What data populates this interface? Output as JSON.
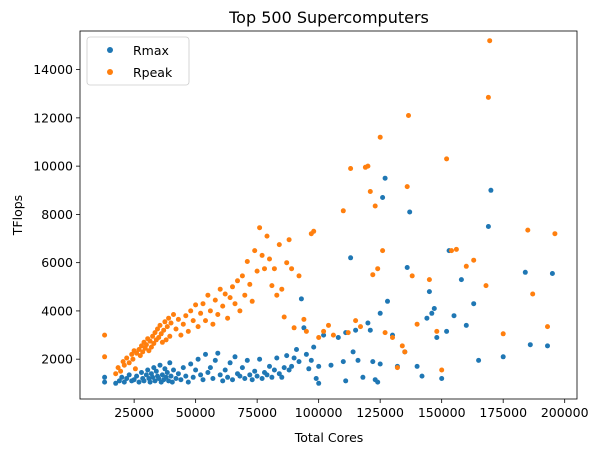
{
  "chart_data": {
    "type": "scatter",
    "title": "Top 500 Supercomputers",
    "xlabel": "Total Cores",
    "ylabel": "TFlops",
    "xlim": [
      3000,
      205000
    ],
    "ylim": [
      350,
      15600
    ],
    "xticks": [
      25000,
      50000,
      75000,
      100000,
      125000,
      150000,
      175000,
      200000
    ],
    "yticks": [
      2000,
      4000,
      6000,
      8000,
      10000,
      12000,
      14000
    ],
    "grid": false,
    "legend_position": "top-left",
    "series": [
      {
        "name": "Rmax",
        "color": "#1f77b4",
        "points": [
          [
            13000,
            1050
          ],
          [
            13000,
            1250
          ],
          [
            17500,
            1000
          ],
          [
            19000,
            1100
          ],
          [
            20000,
            1250
          ],
          [
            21000,
            1050
          ],
          [
            22000,
            1200
          ],
          [
            23000,
            1350
          ],
          [
            24000,
            1100
          ],
          [
            25000,
            1150
          ],
          [
            26000,
            1300
          ],
          [
            27000,
            1050
          ],
          [
            28000,
            1450
          ],
          [
            28500,
            1200
          ],
          [
            29000,
            1100
          ],
          [
            30000,
            1350
          ],
          [
            30500,
            1550
          ],
          [
            31000,
            1200
          ],
          [
            31500,
            1050
          ],
          [
            32000,
            1400
          ],
          [
            32500,
            1250
          ],
          [
            33000,
            1650
          ],
          [
            33500,
            1100
          ],
          [
            34000,
            1500
          ],
          [
            34500,
            1300
          ],
          [
            35000,
            1200
          ],
          [
            35500,
            1750
          ],
          [
            36000,
            1050
          ],
          [
            36500,
            1350
          ],
          [
            37000,
            1150
          ],
          [
            37500,
            1600
          ],
          [
            38000,
            1250
          ],
          [
            38500,
            1450
          ],
          [
            39000,
            1100
          ],
          [
            39500,
            1850
          ],
          [
            40000,
            1300
          ],
          [
            40500,
            1050
          ],
          [
            41000,
            1550
          ],
          [
            42000,
            1200
          ],
          [
            43000,
            1400
          ],
          [
            44000,
            1150
          ],
          [
            45000,
            1650
          ],
          [
            46000,
            1300
          ],
          [
            47000,
            1050
          ],
          [
            48000,
            1800
          ],
          [
            49000,
            1250
          ],
          [
            50000,
            1550
          ],
          [
            51000,
            2000
          ],
          [
            52000,
            1350
          ],
          [
            53000,
            1150
          ],
          [
            54000,
            2200
          ],
          [
            55000,
            1450
          ],
          [
            56000,
            1650
          ],
          [
            57000,
            1200
          ],
          [
            58000,
            1950
          ],
          [
            59000,
            2250
          ],
          [
            60000,
            1350
          ],
          [
            61000,
            1100
          ],
          [
            62000,
            1550
          ],
          [
            63000,
            1250
          ],
          [
            64000,
            1850
          ],
          [
            65000,
            1150
          ],
          [
            66000,
            2100
          ],
          [
            67000,
            1400
          ],
          [
            68000,
            1300
          ],
          [
            69000,
            1650
          ],
          [
            70000,
            1200
          ],
          [
            71000,
            1950
          ],
          [
            72000,
            1350
          ],
          [
            73000,
            1150
          ],
          [
            74000,
            1500
          ],
          [
            75000,
            1300
          ],
          [
            76000,
            2000
          ],
          [
            77000,
            1200
          ],
          [
            78000,
            1450
          ],
          [
            79000,
            1350
          ],
          [
            80000,
            1700
          ],
          [
            81000,
            1250
          ],
          [
            82000,
            1550
          ],
          [
            83000,
            2050
          ],
          [
            84000,
            1400
          ],
          [
            85000,
            1250
          ],
          [
            86000,
            1650
          ],
          [
            87000,
            2150
          ],
          [
            88000,
            1550
          ],
          [
            89000,
            1700
          ],
          [
            90000,
            2050
          ],
          [
            91000,
            2400
          ],
          [
            92000,
            1900
          ],
          [
            93000,
            4500
          ],
          [
            94000,
            3300
          ],
          [
            95000,
            2200
          ],
          [
            96000,
            1600
          ],
          [
            97000,
            1950
          ],
          [
            98000,
            2500
          ],
          [
            99000,
            1200
          ],
          [
            100000,
            1000
          ],
          [
            100000,
            1700
          ],
          [
            102000,
            3000
          ],
          [
            105000,
            1750
          ],
          [
            108000,
            2900
          ],
          [
            110000,
            1900
          ],
          [
            111000,
            1100
          ],
          [
            111000,
            3100
          ],
          [
            113000,
            6200
          ],
          [
            114000,
            2300
          ],
          [
            115000,
            3200
          ],
          [
            116000,
            1950
          ],
          [
            118000,
            1250
          ],
          [
            120000,
            3500
          ],
          [
            121000,
            3200
          ],
          [
            122000,
            1900
          ],
          [
            123000,
            1150
          ],
          [
            124000,
            1050
          ],
          [
            125000,
            1800
          ],
          [
            125000,
            3900
          ],
          [
            126000,
            8700
          ],
          [
            127000,
            9500
          ],
          [
            128000,
            4400
          ],
          [
            130000,
            3000
          ],
          [
            132000,
            1700
          ],
          [
            135000,
            2300
          ],
          [
            136000,
            5800
          ],
          [
            137000,
            8100
          ],
          [
            140000,
            1700
          ],
          [
            142000,
            1300
          ],
          [
            144000,
            3700
          ],
          [
            145000,
            4800
          ],
          [
            146000,
            3900
          ],
          [
            147000,
            4100
          ],
          [
            148000,
            2900
          ],
          [
            150000,
            1200
          ],
          [
            152000,
            3150
          ],
          [
            153000,
            6500
          ],
          [
            155000,
            3800
          ],
          [
            158000,
            5300
          ],
          [
            160000,
            3400
          ],
          [
            163000,
            4300
          ],
          [
            165000,
            1950
          ],
          [
            169000,
            7500
          ],
          [
            170000,
            9000
          ],
          [
            175000,
            2100
          ],
          [
            184000,
            5600
          ],
          [
            186000,
            2600
          ],
          [
            193000,
            2550
          ],
          [
            195000,
            5550
          ]
        ]
      },
      {
        "name": "Rpeak",
        "color": "#ff7f0e",
        "points": [
          [
            13000,
            2100
          ],
          [
            13000,
            3000
          ],
          [
            17500,
            1400
          ],
          [
            18500,
            1650
          ],
          [
            19500,
            1500
          ],
          [
            20500,
            1900
          ],
          [
            21000,
            1750
          ],
          [
            22000,
            2050
          ],
          [
            23000,
            1850
          ],
          [
            24000,
            2200
          ],
          [
            24500,
            2000
          ],
          [
            25000,
            2350
          ],
          [
            25500,
            1600
          ],
          [
            26000,
            2250
          ],
          [
            27000,
            2400
          ],
          [
            27500,
            2150
          ],
          [
            28000,
            2550
          ],
          [
            28500,
            2300
          ],
          [
            29000,
            2700
          ],
          [
            29500,
            2450
          ],
          [
            30000,
            2600
          ],
          [
            30500,
            2850
          ],
          [
            31000,
            2350
          ],
          [
            31500,
            2750
          ],
          [
            32000,
            2500
          ],
          [
            32500,
            2950
          ],
          [
            33000,
            2650
          ],
          [
            33500,
            3100
          ],
          [
            34000,
            2800
          ],
          [
            34500,
            3250
          ],
          [
            35000,
            2900
          ],
          [
            35500,
            3400
          ],
          [
            36000,
            3050
          ],
          [
            36500,
            2700
          ],
          [
            37000,
            3200
          ],
          [
            37500,
            3550
          ],
          [
            38000,
            2800
          ],
          [
            38500,
            3350
          ],
          [
            39000,
            3700
          ],
          [
            39500,
            2950
          ],
          [
            40000,
            3500
          ],
          [
            41000,
            3850
          ],
          [
            42000,
            3250
          ],
          [
            43000,
            3650
          ],
          [
            44000,
            3000
          ],
          [
            45000,
            3450
          ],
          [
            46000,
            3800
          ],
          [
            47000,
            3150
          ],
          [
            48000,
            4000
          ],
          [
            49000,
            3600
          ],
          [
            50000,
            4250
          ],
          [
            51000,
            3350
          ],
          [
            52000,
            3900
          ],
          [
            53000,
            4300
          ],
          [
            54000,
            3600
          ],
          [
            55000,
            4650
          ],
          [
            56000,
            4000
          ],
          [
            57000,
            3450
          ],
          [
            58000,
            4450
          ],
          [
            59000,
            3850
          ],
          [
            60000,
            4900
          ],
          [
            61000,
            4200
          ],
          [
            62000,
            4700
          ],
          [
            63000,
            3700
          ],
          [
            64000,
            4550
          ],
          [
            65000,
            5000
          ],
          [
            66000,
            4300
          ],
          [
            67000,
            5250
          ],
          [
            68000,
            4000
          ],
          [
            69000,
            5450
          ],
          [
            70000,
            4650
          ],
          [
            71000,
            6050
          ],
          [
            72000,
            5100
          ],
          [
            73000,
            4400
          ],
          [
            74000,
            6500
          ],
          [
            75000,
            5650
          ],
          [
            76000,
            7450
          ],
          [
            77000,
            6300
          ],
          [
            78000,
            5750
          ],
          [
            79000,
            7100
          ],
          [
            80000,
            6150
          ],
          [
            81000,
            5050
          ],
          [
            82000,
            5750
          ],
          [
            83000,
            4650
          ],
          [
            84000,
            6750
          ],
          [
            85000,
            4900
          ],
          [
            86000,
            3750
          ],
          [
            87000,
            6000
          ],
          [
            88000,
            6950
          ],
          [
            89000,
            5750
          ],
          [
            90000,
            3300
          ],
          [
            92000,
            5450
          ],
          [
            94000,
            3650
          ],
          [
            95000,
            3150
          ],
          [
            97000,
            7200
          ],
          [
            98000,
            7300
          ],
          [
            100000,
            2900
          ],
          [
            102000,
            3150
          ],
          [
            104000,
            3400
          ],
          [
            106000,
            3000
          ],
          [
            110000,
            8150
          ],
          [
            112000,
            3100
          ],
          [
            113000,
            9900
          ],
          [
            115000,
            3600
          ],
          [
            117000,
            3350
          ],
          [
            119000,
            9950
          ],
          [
            120000,
            10000
          ],
          [
            121000,
            8950
          ],
          [
            122000,
            5500
          ],
          [
            123000,
            8350
          ],
          [
            124000,
            5750
          ],
          [
            125000,
            11200
          ],
          [
            126000,
            6500
          ],
          [
            127000,
            3100
          ],
          [
            130000,
            2900
          ],
          [
            132000,
            1650
          ],
          [
            134000,
            2550
          ],
          [
            135000,
            2300
          ],
          [
            136000,
            9150
          ],
          [
            136500,
            12100
          ],
          [
            138000,
            5450
          ],
          [
            140000,
            3450
          ],
          [
            145000,
            5300
          ],
          [
            148000,
            3150
          ],
          [
            150000,
            1550
          ],
          [
            152000,
            10300
          ],
          [
            154000,
            6500
          ],
          [
            156000,
            6550
          ],
          [
            160000,
            5850
          ],
          [
            163000,
            6100
          ],
          [
            168000,
            5050
          ],
          [
            169000,
            12850
          ],
          [
            169500,
            15200
          ],
          [
            175000,
            3050
          ],
          [
            185000,
            7350
          ],
          [
            187000,
            4700
          ],
          [
            193000,
            3350
          ],
          [
            196000,
            7200
          ]
        ]
      }
    ]
  }
}
